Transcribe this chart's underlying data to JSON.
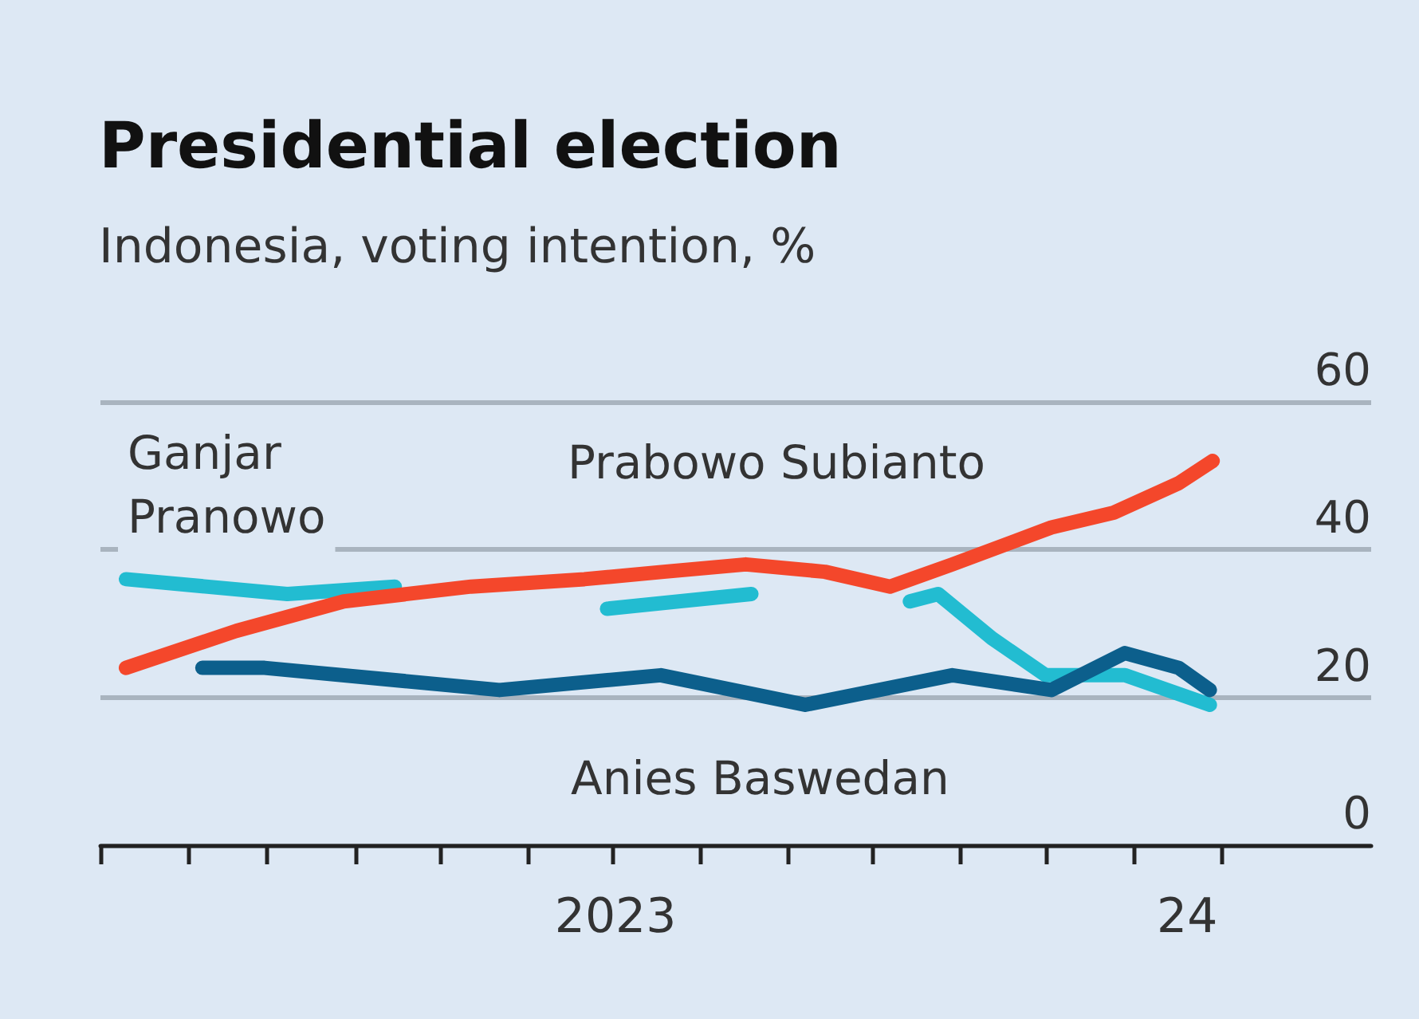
{
  "chart_data": {
    "type": "line",
    "title": "Presidential election",
    "subtitle": "Indonesia, voting intention, %",
    "xlim": [
      "2023-01-01",
      "2024-03-25"
    ],
    "xticks": [
      {
        "value": "2023-01-01",
        "label": null
      },
      {
        "value": "2023-02-01",
        "label": null
      },
      {
        "value": "2023-03-01",
        "label": null
      },
      {
        "value": "2023-04-01",
        "label": null
      },
      {
        "value": "2023-05-01",
        "label": null
      },
      {
        "value": "2023-06-01",
        "label": null
      },
      {
        "value": "2023-07-01",
        "label": null
      },
      {
        "value": "2023-08-01",
        "label": null
      },
      {
        "value": "2023-09-01",
        "label": null
      },
      {
        "value": "2023-10-01",
        "label": null
      },
      {
        "value": "2023-11-01",
        "label": null
      },
      {
        "value": "2023-12-01",
        "label": null
      },
      {
        "value": "2024-01-01",
        "label": null
      },
      {
        "value": "2024-02-01",
        "label": null
      },
      {
        "value": "2023-07-02",
        "label": "2023"
      },
      {
        "value": "2024-01-20",
        "label": "24"
      }
    ],
    "ylim": [
      0,
      60
    ],
    "yticks": [
      0,
      20,
      40,
      60
    ],
    "grid": "y",
    "legend": false,
    "marker": "none",
    "line_style": "solid",
    "series": [
      {
        "name": "Ganjar Pranowo",
        "color": "#22bcd1",
        "x": [
          "2023-01-10",
          "2023-03-08",
          "2023-04-15",
          "2023-05-15",
          "2023-06-29",
          "2023-08-19",
          "2023-09-15",
          "2023-10-14",
          "2023-10-24",
          "2023-11-12",
          "2023-12-01",
          "2023-12-29",
          "2024-01-28"
        ],
        "values": [
          36,
          34,
          35,
          null,
          32,
          34,
          null,
          33,
          34,
          28,
          23,
          23,
          19
        ]
      },
      {
        "name": "Anies Baswedan",
        "color": "#0c5f8c",
        "x": [
          "2023-02-06",
          "2023-02-28",
          "2023-05-22",
          "2023-07-18",
          "2023-09-07",
          "2023-10-29",
          "2023-12-03",
          "2023-12-29",
          "2024-01-17",
          "2024-01-28"
        ],
        "values": [
          24,
          24,
          21,
          23,
          19,
          23,
          21,
          26,
          24,
          21
        ]
      },
      {
        "name": "Prabowo Subianto",
        "color": "#f4472b",
        "x": [
          "2023-01-10",
          "2023-02-18",
          "2023-03-28",
          "2023-05-12",
          "2023-06-21",
          "2023-07-19",
          "2023-08-17",
          "2023-09-14",
          "2023-10-07",
          "2023-10-29",
          "2023-12-03",
          "2023-12-25",
          "2024-01-17",
          "2024-01-29"
        ],
        "values": [
          24,
          29,
          33,
          35,
          36,
          37,
          38,
          37,
          35,
          38,
          43,
          45,
          49,
          52
        ]
      }
    ]
  }
}
